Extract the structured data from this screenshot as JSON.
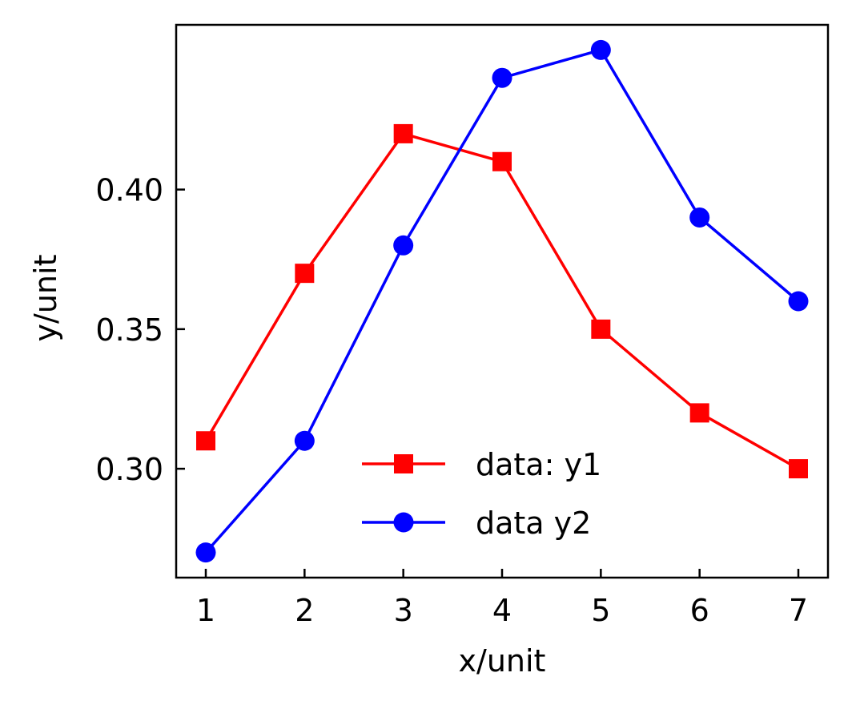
{
  "chart_data": {
    "type": "line",
    "title": "",
    "xlabel": "x/unit",
    "ylabel": "y/unit",
    "xlim": [
      0.7,
      7.3
    ],
    "ylim": [
      0.261,
      0.459
    ],
    "xticks": [
      1,
      2,
      3,
      4,
      5,
      6,
      7
    ],
    "xtick_labels": [
      "1",
      "2",
      "3",
      "4",
      "5",
      "6",
      "7"
    ],
    "yticks": [
      0.3,
      0.35,
      0.4
    ],
    "ytick_labels": [
      "0.30",
      "0.35",
      "0.40"
    ],
    "grid": false,
    "legend_position": "lower-right",
    "x": [
      1,
      2,
      3,
      4,
      5,
      6,
      7
    ],
    "series": [
      {
        "name": "data: y1",
        "color": "#ff0000",
        "marker": "square",
        "values": [
          0.31,
          0.37,
          0.42,
          0.41,
          0.35,
          0.32,
          0.3
        ]
      },
      {
        "name": "data y2",
        "color": "#0000ff",
        "marker": "circle",
        "values": [
          0.27,
          0.31,
          0.38,
          0.44,
          0.45,
          0.39,
          0.36
        ]
      }
    ]
  }
}
